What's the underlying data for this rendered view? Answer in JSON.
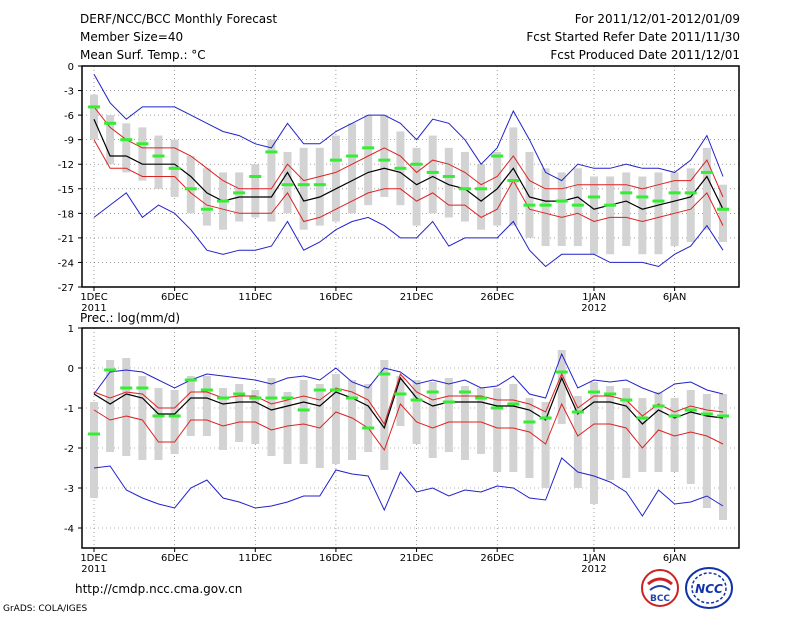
{
  "header": {
    "line1_left": "DERF/NCC/BCC Monthly Forecast",
    "line2_left": "Member Size=40",
    "line3_left": "Mean Surf. Temp.: °C",
    "line1_right": "For 2011/12/01-2012/01/09",
    "line2_right": "Fcst Started Refer Date 2011/11/30",
    "line3_right": "Fcst Produced Date 2011/12/01"
  },
  "footer": {
    "url": "http://cmdp.ncc.cma.gov.cn",
    "credit": "GrADS: COLA/IGES",
    "logo_bcc": "BCC",
    "logo_ncc": "NCC"
  },
  "colors": {
    "box": "#d3d3d3",
    "median": "#33ee33",
    "mean": "#000000",
    "spread": "#dd2222",
    "envelope": "#2222cc",
    "grid": "#666666"
  },
  "chart_data": [
    {
      "type": "line",
      "title": "Mean Surf. Temp.: °C",
      "x": [
        1,
        2,
        3,
        4,
        5,
        6,
        7,
        8,
        9,
        10,
        11,
        12,
        13,
        14,
        15,
        16,
        17,
        18,
        19,
        20,
        21,
        22,
        23,
        24,
        25,
        26,
        27,
        28,
        29,
        30,
        31,
        32,
        33,
        34,
        35,
        36,
        37,
        38,
        39,
        40
      ],
      "xticks": [
        {
          "x": 1,
          "label": "1DEC",
          "sub": "2011"
        },
        {
          "x": 6,
          "label": "6DEC",
          "sub": ""
        },
        {
          "x": 11,
          "label": "11DEC",
          "sub": ""
        },
        {
          "x": 16,
          "label": "16DEC",
          "sub": ""
        },
        {
          "x": 21,
          "label": "21DEC",
          "sub": ""
        },
        {
          "x": 26,
          "label": "26DEC",
          "sub": ""
        },
        {
          "x": 32,
          "label": "1JAN",
          "sub": "2012"
        },
        {
          "x": 37,
          "label": "6JAN",
          "sub": ""
        }
      ],
      "ylim": [
        -27,
        0
      ],
      "yticks": [
        0,
        -3,
        -6,
        -9,
        -12,
        -15,
        -18,
        -21,
        -24,
        -27
      ],
      "ytick_labels": [
        "0",
        "-3",
        "-6",
        "-9",
        "-12",
        "-15",
        "-18",
        "-21",
        "-24",
        "-27"
      ],
      "series": [
        {
          "name": "max",
          "values": [
            -1,
            -4.5,
            -6.5,
            -5,
            -5,
            -5,
            -6,
            -7,
            -8,
            -8.5,
            -9.5,
            -10,
            -7,
            -9.5,
            -9.5,
            -8,
            -7,
            -6,
            -6,
            -7,
            -9,
            -6.5,
            -7,
            -9,
            -12,
            -10,
            -5.5,
            -9,
            -13,
            -14,
            -12,
            -12.5,
            -12.5,
            -12,
            -12.5,
            -12.5,
            -13,
            -11.5,
            -8.5,
            -13.5
          ]
        },
        {
          "name": "spread_upper",
          "values": [
            -5,
            -7.5,
            -9,
            -10,
            -10,
            -10,
            -11,
            -12.5,
            -14,
            -15,
            -15,
            -15,
            -12,
            -14,
            -13.5,
            -13,
            -12,
            -11,
            -10,
            -11,
            -13,
            -11.5,
            -12,
            -13,
            -14.5,
            -13.5,
            -11,
            -14,
            -15,
            -15,
            -14.5,
            -14.5,
            -14.5,
            -14.5,
            -15,
            -14.5,
            -14,
            -14,
            -11.5,
            -16
          ]
        },
        {
          "name": "mean",
          "values": [
            -6.5,
            -11,
            -11,
            -12,
            -12,
            -12,
            -13.5,
            -15.5,
            -16.5,
            -16,
            -16,
            -16,
            -13,
            -16.5,
            -16,
            -15,
            -14,
            -13,
            -12.5,
            -13,
            -14.5,
            -13.5,
            -14.5,
            -15,
            -16.5,
            -15,
            -12.5,
            -16,
            -16.5,
            -16.5,
            -16,
            -17.5,
            -17,
            -16.5,
            -17.5,
            -17,
            -16.5,
            -16,
            -13.5,
            -17.5
          ]
        },
        {
          "name": "spread_lower",
          "values": [
            -9,
            -12.5,
            -12.5,
            -13.5,
            -13.5,
            -13.5,
            -15.5,
            -17,
            -17.5,
            -18,
            -18,
            -18,
            -15.5,
            -19,
            -18.5,
            -17.5,
            -16.5,
            -15.5,
            -15,
            -15,
            -16.5,
            -15.5,
            -17,
            -17,
            -18.5,
            -17.5,
            -14,
            -17.5,
            -18,
            -18.5,
            -18,
            -19,
            -18.5,
            -18.5,
            -19,
            -18.5,
            -18,
            -17.5,
            -15.5,
            -19.5
          ]
        },
        {
          "name": "min",
          "values": [
            -18.5,
            -17,
            -15.5,
            -18.5,
            -17,
            -18,
            -20,
            -22.5,
            -23,
            -22.5,
            -22.5,
            -22,
            -19,
            -22.5,
            -21.5,
            -20,
            -19,
            -18.5,
            -19.5,
            -21,
            -21,
            -19,
            -22,
            -21,
            -21,
            -21,
            -19,
            -22.5,
            -24.5,
            -23,
            -23,
            -23,
            -24,
            -24,
            -24,
            -24.5,
            -23,
            -22,
            -19.5,
            -22.5
          ]
        },
        {
          "name": "median",
          "values": [
            -5,
            -7,
            -9,
            -9.5,
            -11,
            -12.5,
            -15,
            -17.5,
            -16.5,
            -15.5,
            -13.5,
            -10.5,
            -14.5,
            -14.5,
            -14.5,
            -11.5,
            -11,
            -10,
            -11.5,
            -12.5,
            -12,
            -13,
            -13.5,
            -15,
            -15,
            -11,
            -14,
            -17,
            -17,
            -16.5,
            -17,
            -16,
            -17,
            -15.5,
            -16,
            -16.5,
            -15.5,
            -15.5,
            -13,
            -17.5
          ]
        },
        {
          "name": "box_top",
          "values": [
            -3.5,
            -6,
            -7,
            -7.5,
            -8.5,
            -9,
            -11,
            -12.5,
            -13,
            -13,
            -12,
            -9,
            -10.5,
            -10,
            -10,
            -8.5,
            -7,
            -6,
            -6,
            -8,
            -10,
            -8.5,
            -10,
            -10.5,
            -12,
            -10.5,
            -7.5,
            -10.5,
            -12.5,
            -13,
            -12.5,
            -13.5,
            -13.5,
            -13,
            -13.5,
            -13,
            -13,
            -12.5,
            -10,
            -14.5
          ]
        },
        {
          "name": "box_bottom",
          "values": [
            -9,
            -12,
            -13,
            -14,
            -15,
            -16,
            -18,
            -19.5,
            -20,
            -19,
            -18.5,
            -19,
            -18,
            -20,
            -19.5,
            -19,
            -18,
            -17,
            -16,
            -17,
            -19.5,
            -18,
            -18.5,
            -19,
            -20,
            -19.5,
            -19.5,
            -21,
            -22,
            -22,
            -22,
            -23,
            -23,
            -22,
            -23,
            -23,
            -22,
            -21.5,
            -20,
            -21.5
          ]
        }
      ]
    },
    {
      "type": "line",
      "title": "Prec.: log(mm/d)",
      "x": [
        1,
        2,
        3,
        4,
        5,
        6,
        7,
        8,
        9,
        10,
        11,
        12,
        13,
        14,
        15,
        16,
        17,
        18,
        19,
        20,
        21,
        22,
        23,
        24,
        25,
        26,
        27,
        28,
        29,
        30,
        31,
        32,
        33,
        34,
        35,
        36,
        37,
        38,
        39,
        40
      ],
      "xticks": [
        {
          "x": 1,
          "label": "1DEC",
          "sub": "2011"
        },
        {
          "x": 6,
          "label": "6DEC",
          "sub": ""
        },
        {
          "x": 11,
          "label": "11DEC",
          "sub": ""
        },
        {
          "x": 16,
          "label": "16DEC",
          "sub": ""
        },
        {
          "x": 21,
          "label": "21DEC",
          "sub": ""
        },
        {
          "x": 26,
          "label": "26DEC",
          "sub": ""
        },
        {
          "x": 32,
          "label": "1JAN",
          "sub": "2012"
        },
        {
          "x": 37,
          "label": "6JAN",
          "sub": ""
        }
      ],
      "ylim": [
        -4.5,
        1
      ],
      "yticks": [
        1,
        0,
        -1,
        -2,
        -3,
        -4
      ],
      "ytick_labels": [
        "1",
        "0",
        "-1",
        "-2",
        "-3",
        "-4"
      ],
      "series": [
        {
          "name": "max",
          "values": [
            -0.65,
            -0.1,
            -0.05,
            -0.1,
            -0.3,
            -0.5,
            -0.3,
            -0.15,
            -0.2,
            -0.25,
            -0.3,
            -0.4,
            -0.25,
            -0.2,
            -0.3,
            0.0,
            -0.35,
            -0.5,
            0.0,
            -0.1,
            -0.4,
            -0.3,
            -0.4,
            -0.3,
            -0.5,
            -0.45,
            -0.2,
            -0.65,
            -0.75,
            0.35,
            -0.5,
            -0.3,
            -0.35,
            -0.3,
            -0.5,
            -0.65,
            -0.4,
            -0.35,
            -0.55,
            -0.65
          ]
        },
        {
          "name": "spread_upper",
          "values": [
            -0.6,
            -0.75,
            -0.6,
            -0.65,
            -1.0,
            -1.0,
            -0.6,
            -0.6,
            -0.75,
            -0.7,
            -0.7,
            -0.9,
            -0.8,
            -0.7,
            -0.8,
            -0.5,
            -0.6,
            -0.8,
            -1.4,
            -0.15,
            -0.6,
            -0.8,
            -0.7,
            -0.7,
            -0.7,
            -0.8,
            -0.8,
            -0.9,
            -1.1,
            -0.15,
            -1.0,
            -0.7,
            -0.7,
            -0.8,
            -1.2,
            -0.9,
            -1.1,
            -0.95,
            -1.05,
            -1.1
          ]
        },
        {
          "name": "mean",
          "values": [
            -0.65,
            -0.9,
            -0.65,
            -0.75,
            -1.15,
            -1.15,
            -0.75,
            -0.75,
            -0.9,
            -0.85,
            -0.85,
            -1.05,
            -0.95,
            -0.85,
            -0.95,
            -0.6,
            -0.75,
            -0.95,
            -1.5,
            -0.25,
            -0.75,
            -0.95,
            -0.85,
            -0.85,
            -0.85,
            -0.95,
            -0.95,
            -1.05,
            -1.3,
            -0.25,
            -1.15,
            -0.85,
            -0.85,
            -0.95,
            -1.4,
            -1.05,
            -1.25,
            -1.1,
            -1.2,
            -1.25
          ]
        },
        {
          "name": "spread_lower",
          "values": [
            -1.05,
            -1.3,
            -1.2,
            -1.3,
            -1.85,
            -1.85,
            -1.3,
            -1.3,
            -1.45,
            -1.35,
            -1.35,
            -1.55,
            -1.45,
            -1.4,
            -1.5,
            -1.1,
            -1.25,
            -1.5,
            -2.05,
            -0.9,
            -1.35,
            -1.5,
            -1.35,
            -1.35,
            -1.35,
            -1.5,
            -1.5,
            -1.6,
            -1.9,
            -0.9,
            -1.7,
            -1.4,
            -1.4,
            -1.5,
            -2.0,
            -1.55,
            -1.7,
            -1.6,
            -1.7,
            -1.9
          ]
        },
        {
          "name": "min",
          "values": [
            -2.5,
            -2.45,
            -3.05,
            -3.25,
            -3.4,
            -3.5,
            -3.0,
            -2.8,
            -3.25,
            -3.35,
            -3.5,
            -3.45,
            -3.35,
            -3.2,
            -3.2,
            -2.55,
            -2.65,
            -2.7,
            -3.55,
            -2.6,
            -3.1,
            -3.0,
            -3.2,
            -3.05,
            -3.1,
            -2.95,
            -3.0,
            -3.25,
            -3.3,
            -2.25,
            -2.6,
            -2.7,
            -2.85,
            -3.1,
            -3.7,
            -3.05,
            -3.4,
            -3.35,
            -3.2,
            -3.45
          ]
        },
        {
          "name": "median",
          "values": [
            -1.65,
            -0.05,
            -0.5,
            -0.5,
            -1.2,
            -1.2,
            -0.3,
            -0.55,
            -0.75,
            -0.65,
            -0.75,
            -0.75,
            -0.75,
            -1.05,
            -0.55,
            -0.55,
            -0.75,
            -1.5,
            -0.15,
            -0.65,
            -0.8,
            -0.6,
            -0.85,
            -0.6,
            -0.75,
            -1.0,
            -0.9,
            -1.35,
            -1.25,
            -0.1,
            -1.1,
            -0.6,
            -0.65,
            -0.8,
            -1.25,
            -0.95,
            -1.2,
            -1.05,
            -1.15,
            -1.2
          ]
        },
        {
          "name": "box_top",
          "values": [
            -0.85,
            0.2,
            0.25,
            -0.2,
            -0.5,
            -0.55,
            -0.2,
            -0.2,
            -0.5,
            -0.4,
            -0.55,
            -0.25,
            -0.6,
            -0.3,
            -0.4,
            -0.15,
            -0.3,
            -0.4,
            0.2,
            -0.2,
            -0.3,
            -0.35,
            -0.25,
            -0.45,
            -0.5,
            -0.5,
            -0.4,
            -0.75,
            -0.85,
            0.45,
            -0.7,
            -0.35,
            -0.45,
            -0.5,
            -0.75,
            -0.6,
            -0.75,
            -0.55,
            -0.65,
            -0.65
          ]
        },
        {
          "name": "box_bottom",
          "values": [
            -3.25,
            -2.1,
            -2.2,
            -2.3,
            -2.3,
            -2.15,
            -1.7,
            -1.7,
            -2.05,
            -1.85,
            -1.9,
            -2.2,
            -2.4,
            -2.4,
            -2.5,
            -2.4,
            -2.3,
            -2.1,
            -2.55,
            -1.45,
            -1.9,
            -2.25,
            -2.1,
            -2.3,
            -2.15,
            -2.6,
            -2.6,
            -2.75,
            -3.0,
            -1.4,
            -3.0,
            -3.4,
            -2.8,
            -2.75,
            -2.6,
            -2.6,
            -2.6,
            -2.9,
            -3.5,
            -3.8
          ]
        }
      ]
    }
  ]
}
